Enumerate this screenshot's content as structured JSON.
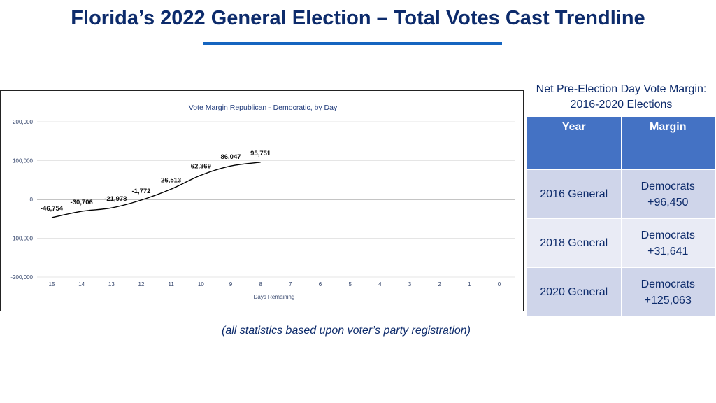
{
  "slide": {
    "title": "Florida’s 2022 General Election – Total Votes Cast Trendline",
    "footnote": "(all statistics based upon voter’s party registration)"
  },
  "colors": {
    "title": "#0d2b6b",
    "accent_rule": "#1565c0",
    "table_header": "#4472c4",
    "row_dark": "#cfd5ea",
    "row_light": "#e9ebf5",
    "line": "#000000"
  },
  "chart_data": {
    "type": "line",
    "title": "Vote Margin Republican - Democratic, by Day",
    "xlabel": "Days Remaining",
    "ylabel": "",
    "x_ticks": [
      "15",
      "14",
      "13",
      "12",
      "11",
      "10",
      "9",
      "8",
      "7",
      "6",
      "5",
      "4",
      "3",
      "2",
      "1",
      "0"
    ],
    "y_ticks": [
      "200,000",
      "100,000",
      "0",
      "-100,000",
      "-200,000"
    ],
    "ylim": [
      -200000,
      200000
    ],
    "xlim": [
      15,
      0
    ],
    "grid": true,
    "series": [
      {
        "x": [
          15,
          14,
          13,
          12,
          11,
          10,
          9,
          8
        ],
        "values": [
          -46754,
          -30706,
          -21978,
          -1772,
          26513,
          62369,
          86047,
          95751
        ],
        "labels": [
          "-46,754",
          "-30,706",
          "-21,978",
          "-1,772",
          "26,513",
          "62,369",
          "86,047",
          "95,751"
        ]
      }
    ]
  },
  "table": {
    "caption": "Net Pre-Election Day Vote Margin: 2016-2020 Elections",
    "headers": [
      "Year",
      "Margin"
    ],
    "rows": [
      {
        "year": "2016 General",
        "margin_party": "Democrats",
        "margin_value": "+96,450"
      },
      {
        "year": "2018 General",
        "margin_party": "Democrats",
        "margin_value": "+31,641"
      },
      {
        "year": "2020 General",
        "margin_party": "Democrats",
        "margin_value": "+125,063"
      }
    ]
  }
}
